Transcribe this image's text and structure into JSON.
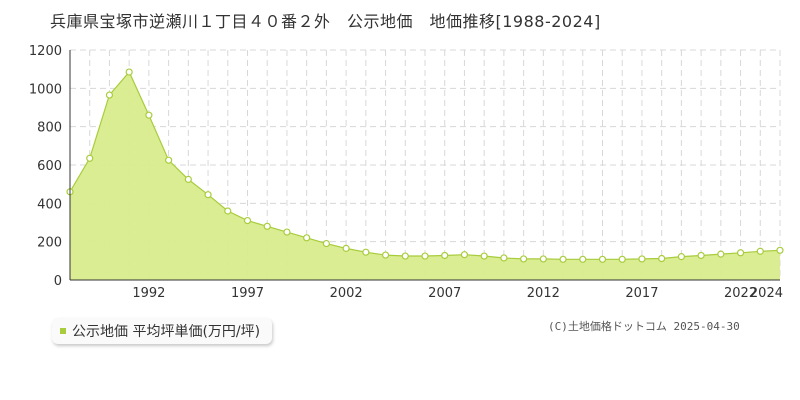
{
  "page": {
    "title": "兵庫県宝塚市逆瀬川１丁目４０番２外　公示地価　地価推移[1988-2024]",
    "copyright": "(C)土地価格ドットコム 2025-04-30"
  },
  "legend": {
    "label": "公示地価 平均坪単価(万円/坪)"
  },
  "colors": {
    "fill": "#d8ec8c",
    "line": "#a8cc3c",
    "marker_stroke": "#a8cc3c",
    "marker_fill": "#ffffff",
    "grid": "#d8d8d8",
    "axis": "#333333",
    "legend_marker": "#a8cc3c"
  },
  "chart_data": {
    "type": "area",
    "title": "兵庫県宝塚市逆瀬川１丁目４０番２外　公示地価　地価推移[1988-2024]",
    "xlabel": "",
    "ylabel": "",
    "xlim": [
      1988,
      2024
    ],
    "ylim": [
      0,
      1200
    ],
    "y_ticks": [
      0,
      200,
      400,
      600,
      800,
      1000,
      1200
    ],
    "x_tick_labels": [
      "1992",
      "1997",
      "2002",
      "2007",
      "2012",
      "2017",
      "2022",
      "2024"
    ],
    "grid": true,
    "legend_position": "bottom-left",
    "series": [
      {
        "name": "公示地価 平均坪単価(万円/坪)",
        "x": [
          1988,
          1989,
          1990,
          1991,
          1992,
          1993,
          1994,
          1995,
          1996,
          1997,
          1998,
          1999,
          2000,
          2001,
          2002,
          2003,
          2004,
          2005,
          2006,
          2007,
          2008,
          2009,
          2010,
          2011,
          2012,
          2013,
          2014,
          2015,
          2016,
          2017,
          2018,
          2019,
          2020,
          2021,
          2022,
          2023,
          2024
        ],
        "values": [
          460,
          635,
          965,
          1085,
          860,
          625,
          525,
          445,
          360,
          310,
          280,
          250,
          220,
          190,
          165,
          145,
          130,
          125,
          125,
          128,
          132,
          125,
          115,
          110,
          110,
          108,
          108,
          108,
          108,
          110,
          112,
          122,
          128,
          135,
          142,
          150,
          155
        ]
      }
    ]
  }
}
